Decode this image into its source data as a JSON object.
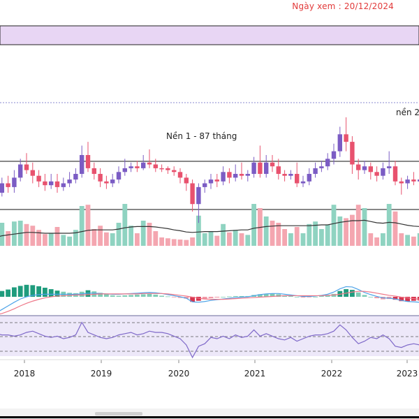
{
  "header": {
    "view_date": "Ngày xem : 20/12/2024"
  },
  "annotations": {
    "base_1": "Nền 1 - 87 tháng",
    "base_2": "nền 2"
  },
  "colors": {
    "up": "#4db6a2",
    "down": "#e8526e",
    "up_vol": "#8fd3c1",
    "down_vol": "#f4a6b0",
    "ma_line": "#333333",
    "macd": "#4da3e8",
    "signal": "#ee7788",
    "rsi": "#7f69c9",
    "band": "#ede8f9",
    "top_band": "#e8d6f4",
    "view_date": "#e23a3a"
  },
  "chart_data": {
    "type": "candlestick",
    "title": "",
    "xlabel": "",
    "ylabel": "",
    "x_ticks": [
      "2018",
      "2019",
      "2020",
      "2021",
      "2022",
      "2023"
    ],
    "candles": [
      {
        "o": 0.52,
        "c": 0.62,
        "h": 0.66,
        "l": 0.44,
        "d": 1,
        "v": 0.3
      },
      {
        "o": 0.6,
        "c": 0.7,
        "h": 0.76,
        "l": 0.56,
        "d": 1,
        "v": 0.55
      },
      {
        "o": 0.7,
        "c": 0.66,
        "h": 0.78,
        "l": 0.6,
        "d": -1,
        "v": 0.35
      },
      {
        "o": 0.66,
        "c": 0.76,
        "h": 0.84,
        "l": 0.6,
        "d": 1,
        "v": 0.58
      },
      {
        "o": 0.76,
        "c": 0.9,
        "h": 0.96,
        "l": 0.72,
        "d": 1,
        "v": 0.6
      },
      {
        "o": 0.9,
        "c": 0.84,
        "h": 1.02,
        "l": 0.8,
        "d": -1,
        "v": 0.52
      },
      {
        "o": 0.84,
        "c": 0.78,
        "h": 0.92,
        "l": 0.7,
        "d": -1,
        "v": 0.48
      },
      {
        "o": 0.78,
        "c": 0.72,
        "h": 0.84,
        "l": 0.66,
        "d": -1,
        "v": 0.38
      },
      {
        "o": 0.72,
        "c": 0.68,
        "h": 0.8,
        "l": 0.62,
        "d": -1,
        "v": 0.28
      },
      {
        "o": 0.68,
        "c": 0.72,
        "h": 0.8,
        "l": 0.64,
        "d": 1,
        "v": 0.3
      },
      {
        "o": 0.72,
        "c": 0.66,
        "h": 0.8,
        "l": 0.6,
        "d": -1,
        "v": 0.45
      },
      {
        "o": 0.66,
        "c": 0.7,
        "h": 0.76,
        "l": 0.62,
        "d": 1,
        "v": 0.26
      },
      {
        "o": 0.7,
        "c": 0.74,
        "h": 0.82,
        "l": 0.66,
        "d": 1,
        "v": 0.22
      },
      {
        "o": 0.74,
        "c": 0.8,
        "h": 0.86,
        "l": 0.7,
        "d": 1,
        "v": 0.38
      },
      {
        "o": 0.8,
        "c": 1.0,
        "h": 1.1,
        "l": 0.76,
        "d": 1,
        "v": 0.95
      },
      {
        "o": 1.0,
        "c": 0.86,
        "h": 1.14,
        "l": 0.82,
        "d": -1,
        "v": 0.98
      },
      {
        "o": 0.86,
        "c": 0.8,
        "h": 0.92,
        "l": 0.74,
        "d": -1,
        "v": 0.4
      },
      {
        "o": 0.8,
        "c": 0.72,
        "h": 0.86,
        "l": 0.66,
        "d": -1,
        "v": 0.48
      },
      {
        "o": 0.72,
        "c": 0.7,
        "h": 0.78,
        "l": 0.64,
        "d": -1,
        "v": 0.32
      },
      {
        "o": 0.7,
        "c": 0.74,
        "h": 0.8,
        "l": 0.66,
        "d": 1,
        "v": 0.3
      },
      {
        "o": 0.74,
        "c": 0.82,
        "h": 0.88,
        "l": 0.7,
        "d": 1,
        "v": 0.55
      },
      {
        "o": 0.82,
        "c": 0.86,
        "h": 0.96,
        "l": 0.78,
        "d": 1,
        "v": 1.0
      },
      {
        "o": 0.86,
        "c": 0.88,
        "h": 0.92,
        "l": 0.82,
        "d": 1,
        "v": 0.48
      },
      {
        "o": 0.88,
        "c": 0.86,
        "h": 0.94,
        "l": 0.82,
        "d": -1,
        "v": 0.3
      },
      {
        "o": 0.86,
        "c": 0.92,
        "h": 1.0,
        "l": 0.84,
        "d": 1,
        "v": 0.6
      },
      {
        "o": 0.92,
        "c": 0.9,
        "h": 1.06,
        "l": 0.86,
        "d": -1,
        "v": 0.55
      },
      {
        "o": 0.9,
        "c": 0.86,
        "h": 0.96,
        "l": 0.82,
        "d": -1,
        "v": 0.35
      },
      {
        "o": 0.86,
        "c": 0.86,
        "h": 0.9,
        "l": 0.82,
        "d": -1,
        "v": 0.2
      },
      {
        "o": 0.86,
        "c": 0.84,
        "h": 0.88,
        "l": 0.8,
        "d": -1,
        "v": 0.18
      },
      {
        "o": 0.84,
        "c": 0.82,
        "h": 0.88,
        "l": 0.78,
        "d": -1,
        "v": 0.16
      },
      {
        "o": 0.82,
        "c": 0.76,
        "h": 0.86,
        "l": 0.7,
        "d": -1,
        "v": 0.15
      },
      {
        "o": 0.76,
        "c": 0.7,
        "h": 0.8,
        "l": 0.62,
        "d": -1,
        "v": 0.14
      },
      {
        "o": 0.7,
        "c": 0.48,
        "h": 0.74,
        "l": 0.4,
        "d": -1,
        "v": 0.2
      },
      {
        "o": 0.48,
        "c": 0.66,
        "h": 0.7,
        "l": 0.28,
        "d": 1,
        "v": 0.72
      },
      {
        "o": 0.66,
        "c": 0.7,
        "h": 0.74,
        "l": 0.6,
        "d": 1,
        "v": 0.3
      },
      {
        "o": 0.7,
        "c": 0.74,
        "h": 0.8,
        "l": 0.64,
        "d": 1,
        "v": 0.34
      },
      {
        "o": 0.74,
        "c": 0.72,
        "h": 0.8,
        "l": 0.66,
        "d": -1,
        "v": 0.24
      },
      {
        "o": 0.72,
        "c": 0.82,
        "h": 0.88,
        "l": 0.68,
        "d": 1,
        "v": 0.52
      },
      {
        "o": 0.82,
        "c": 0.76,
        "h": 0.86,
        "l": 0.7,
        "d": -1,
        "v": 0.32
      },
      {
        "o": 0.76,
        "c": 0.8,
        "h": 0.9,
        "l": 0.72,
        "d": 1,
        "v": 0.38
      },
      {
        "o": 0.8,
        "c": 0.78,
        "h": 0.92,
        "l": 0.74,
        "d": -1,
        "v": 0.3
      },
      {
        "o": 0.78,
        "c": 0.8,
        "h": 0.84,
        "l": 0.72,
        "d": 1,
        "v": 0.26
      },
      {
        "o": 0.8,
        "c": 0.92,
        "h": 0.98,
        "l": 0.76,
        "d": 1,
        "v": 1.0
      },
      {
        "o": 0.92,
        "c": 0.8,
        "h": 1.1,
        "l": 0.76,
        "d": -1,
        "v": 0.9
      },
      {
        "o": 0.8,
        "c": 0.92,
        "h": 1.0,
        "l": 0.76,
        "d": 1,
        "v": 0.7
      },
      {
        "o": 0.92,
        "c": 0.88,
        "h": 1.0,
        "l": 0.82,
        "d": -1,
        "v": 0.6
      },
      {
        "o": 0.88,
        "c": 0.8,
        "h": 0.96,
        "l": 0.74,
        "d": -1,
        "v": 0.55
      },
      {
        "o": 0.8,
        "c": 0.78,
        "h": 0.84,
        "l": 0.72,
        "d": -1,
        "v": 0.4
      },
      {
        "o": 0.78,
        "c": 0.8,
        "h": 0.84,
        "l": 0.74,
        "d": 1,
        "v": 0.3
      },
      {
        "o": 0.8,
        "c": 0.7,
        "h": 0.92,
        "l": 0.66,
        "d": -1,
        "v": 0.45
      },
      {
        "o": 0.7,
        "c": 0.72,
        "h": 0.78,
        "l": 0.66,
        "d": 1,
        "v": 0.3
      },
      {
        "o": 0.72,
        "c": 0.8,
        "h": 0.86,
        "l": 0.68,
        "d": 1,
        "v": 0.52
      },
      {
        "o": 0.8,
        "c": 0.86,
        "h": 0.92,
        "l": 0.76,
        "d": 1,
        "v": 0.58
      },
      {
        "o": 0.86,
        "c": 0.88,
        "h": 0.94,
        "l": 0.82,
        "d": 1,
        "v": 0.4
      },
      {
        "o": 0.88,
        "c": 0.96,
        "h": 1.02,
        "l": 0.84,
        "d": 1,
        "v": 0.5
      },
      {
        "o": 0.96,
        "c": 1.04,
        "h": 1.12,
        "l": 0.9,
        "d": 1,
        "v": 0.98
      },
      {
        "o": 1.04,
        "c": 1.22,
        "h": 1.3,
        "l": 0.98,
        "d": 1,
        "v": 0.7
      },
      {
        "o": 1.22,
        "c": 1.14,
        "h": 1.4,
        "l": 1.04,
        "d": -1,
        "v": 0.66
      },
      {
        "o": 1.14,
        "c": 0.9,
        "h": 1.2,
        "l": 0.8,
        "d": -1,
        "v": 0.74
      },
      {
        "o": 0.9,
        "c": 0.84,
        "h": 0.96,
        "l": 0.74,
        "d": -1,
        "v": 0.98
      },
      {
        "o": 0.84,
        "c": 0.88,
        "h": 0.94,
        "l": 0.8,
        "d": 1,
        "v": 0.9
      },
      {
        "o": 0.88,
        "c": 0.82,
        "h": 0.92,
        "l": 0.74,
        "d": -1,
        "v": 0.3
      },
      {
        "o": 0.82,
        "c": 0.78,
        "h": 0.88,
        "l": 0.72,
        "d": -1,
        "v": 0.2
      },
      {
        "o": 0.78,
        "c": 0.86,
        "h": 0.92,
        "l": 0.74,
        "d": 1,
        "v": 0.3
      },
      {
        "o": 0.86,
        "c": 0.88,
        "h": 1.04,
        "l": 0.8,
        "d": 1,
        "v": 1.0
      },
      {
        "o": 0.88,
        "c": 0.72,
        "h": 0.94,
        "l": 0.68,
        "d": -1,
        "v": 0.82
      },
      {
        "o": 0.72,
        "c": 0.7,
        "h": 0.76,
        "l": 0.58,
        "d": -1,
        "v": 0.3
      },
      {
        "o": 0.7,
        "c": 0.74,
        "h": 0.78,
        "l": 0.64,
        "d": 1,
        "v": 0.26
      },
      {
        "o": 0.74,
        "c": 0.72,
        "h": 0.82,
        "l": 0.68,
        "d": -1,
        "v": 0.22
      },
      {
        "o": 0.72,
        "c": 0.74,
        "h": 0.8,
        "l": 0.68,
        "d": 1,
        "v": 0.3
      }
    ],
    "volume_ma": [
      0.2,
      0.24,
      0.26,
      0.28,
      0.3,
      0.32,
      0.32,
      0.31,
      0.3,
      0.3,
      0.3,
      0.3,
      0.3,
      0.31,
      0.34,
      0.37,
      0.38,
      0.38,
      0.38,
      0.38,
      0.4,
      0.43,
      0.45,
      0.46,
      0.46,
      0.46,
      0.45,
      0.43,
      0.41,
      0.38,
      0.36,
      0.33,
      0.32,
      0.33,
      0.34,
      0.34,
      0.34,
      0.35,
      0.36,
      0.37,
      0.38,
      0.38,
      0.42,
      0.44,
      0.46,
      0.47,
      0.48,
      0.48,
      0.48,
      0.48,
      0.48,
      0.48,
      0.49,
      0.5,
      0.5,
      0.53,
      0.56,
      0.58,
      0.6,
      0.6,
      0.61,
      0.58,
      0.55,
      0.54,
      0.56,
      0.55,
      0.52,
      0.49,
      0.47,
      0.46
    ],
    "macd_hist": [
      0.2,
      0.32,
      0.4,
      0.52,
      0.6,
      0.66,
      0.64,
      0.58,
      0.5,
      0.42,
      0.34,
      0.28,
      0.22,
      0.2,
      0.28,
      0.36,
      0.3,
      0.22,
      0.14,
      0.08,
      0.06,
      0.08,
      0.1,
      0.12,
      0.14,
      0.16,
      0.12,
      0.06,
      0.02,
      -0.02,
      -0.06,
      -0.1,
      -0.28,
      -0.22,
      -0.14,
      -0.08,
      -0.04,
      0.0,
      0.02,
      0.04,
      0.04,
      0.04,
      0.1,
      0.14,
      0.16,
      0.18,
      0.14,
      0.08,
      0.04,
      0.0,
      -0.04,
      -0.02,
      0.0,
      0.04,
      0.08,
      0.16,
      0.32,
      0.42,
      0.38,
      0.24,
      0.1,
      0.0,
      -0.08,
      -0.14,
      -0.12,
      -0.16,
      -0.24,
      -0.26,
      -0.22,
      -0.2
    ],
    "macd_line": [
      -0.9,
      -0.7,
      -0.5,
      -0.3,
      -0.12,
      0.0,
      0.08,
      0.12,
      0.14,
      0.14,
      0.14,
      0.14,
      0.14,
      0.14,
      0.16,
      0.2,
      0.2,
      0.18,
      0.16,
      0.14,
      0.14,
      0.16,
      0.18,
      0.2,
      0.22,
      0.24,
      0.22,
      0.18,
      0.12,
      0.06,
      0.0,
      -0.08,
      -0.28,
      -0.3,
      -0.26,
      -0.2,
      -0.16,
      -0.12,
      -0.08,
      -0.04,
      -0.02,
      0.0,
      0.06,
      0.12,
      0.16,
      0.18,
      0.18,
      0.14,
      0.1,
      0.06,
      0.02,
      0.02,
      0.04,
      0.08,
      0.14,
      0.26,
      0.44,
      0.56,
      0.54,
      0.4,
      0.24,
      0.12,
      0.02,
      -0.06,
      -0.08,
      -0.12,
      -0.2,
      -0.26,
      -0.28,
      -0.3
    ],
    "signal_line": [
      -1.0,
      -0.92,
      -0.8,
      -0.66,
      -0.5,
      -0.36,
      -0.24,
      -0.14,
      -0.06,
      0.0,
      0.04,
      0.06,
      0.08,
      0.1,
      0.1,
      0.12,
      0.14,
      0.16,
      0.16,
      0.16,
      0.16,
      0.16,
      0.16,
      0.16,
      0.18,
      0.18,
      0.18,
      0.18,
      0.16,
      0.12,
      0.08,
      0.04,
      -0.02,
      -0.08,
      -0.12,
      -0.14,
      -0.14,
      -0.14,
      -0.12,
      -0.1,
      -0.08,
      -0.06,
      -0.04,
      -0.02,
      0.0,
      0.02,
      0.04,
      0.06,
      0.06,
      0.06,
      0.06,
      0.06,
      0.06,
      0.06,
      0.08,
      0.1,
      0.14,
      0.2,
      0.26,
      0.3,
      0.3,
      0.26,
      0.2,
      0.14,
      0.08,
      0.04,
      -0.02,
      -0.06,
      -0.1,
      -0.14
    ],
    "rsi": [
      58,
      56,
      56,
      54,
      56,
      60,
      62,
      58,
      54,
      52,
      54,
      50,
      52,
      56,
      76,
      60,
      56,
      52,
      50,
      52,
      56,
      58,
      60,
      56,
      58,
      62,
      60,
      60,
      58,
      54,
      50,
      40,
      20,
      38,
      42,
      52,
      50,
      54,
      50,
      56,
      52,
      54,
      64,
      54,
      58,
      54,
      50,
      48,
      52,
      46,
      50,
      54,
      56,
      56,
      58,
      62,
      72,
      64,
      52,
      42,
      46,
      52,
      50,
      56,
      50,
      38,
      36,
      40,
      42,
      40
    ]
  }
}
